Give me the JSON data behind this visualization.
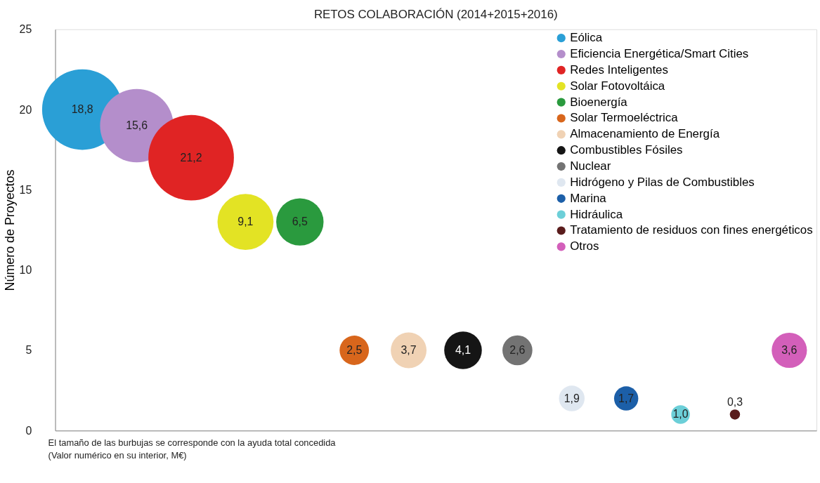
{
  "chart_data": {
    "type": "bubble",
    "title": "RETOS COLABORACIÓN (2014+2015+2016)",
    "ylabel": "Número de Proyectos",
    "categories": [
      null,
      null,
      null,
      null,
      null,
      null,
      null,
      null,
      null,
      null,
      null,
      null,
      null,
      null
    ],
    "ylim": [
      0,
      25
    ],
    "yticks": [
      0,
      5,
      10,
      15,
      20,
      25
    ],
    "grid": false,
    "legend": "top right",
    "marker": "circle",
    "tick_labels": "y",
    "series": [
      {
        "name": "Eólica",
        "color": "#2a9fd6",
        "values": [
          20,
          null,
          null,
          null,
          null,
          null,
          null,
          null,
          null,
          null,
          null,
          null,
          null,
          null
        ],
        "sizes": [
          18.8,
          null,
          null,
          null,
          null,
          null,
          null,
          null,
          null,
          null,
          null,
          null,
          null,
          null
        ],
        "value_labels": [
          "18,8",
          null,
          null,
          null,
          null,
          null,
          null,
          null,
          null,
          null,
          null,
          null,
          null,
          null
        ]
      },
      {
        "name": "Eficiencia Energética/Smart Cities",
        "color": "#b48ecb",
        "values": [
          null,
          19,
          null,
          null,
          null,
          null,
          null,
          null,
          null,
          null,
          null,
          null,
          null,
          null
        ],
        "sizes": [
          null,
          15.6,
          null,
          null,
          null,
          null,
          null,
          null,
          null,
          null,
          null,
          null,
          null,
          null
        ],
        "value_labels": [
          null,
          "15,6",
          null,
          null,
          null,
          null,
          null,
          null,
          null,
          null,
          null,
          null,
          null,
          null
        ]
      },
      {
        "name": "Redes Inteligentes",
        "color": "#e02424",
        "values": [
          null,
          null,
          17,
          null,
          null,
          null,
          null,
          null,
          null,
          null,
          null,
          null,
          null,
          null
        ],
        "sizes": [
          null,
          null,
          21.2,
          null,
          null,
          null,
          null,
          null,
          null,
          null,
          null,
          null,
          null,
          null
        ],
        "value_labels": [
          null,
          null,
          "21,2",
          null,
          null,
          null,
          null,
          null,
          null,
          null,
          null,
          null,
          null,
          null
        ]
      },
      {
        "name": "Solar Fotovoltáica",
        "color": "#e3e324",
        "values": [
          null,
          null,
          null,
          13,
          null,
          null,
          null,
          null,
          null,
          null,
          null,
          null,
          null,
          null
        ],
        "sizes": [
          null,
          null,
          null,
          9.1,
          null,
          null,
          null,
          null,
          null,
          null,
          null,
          null,
          null,
          null
        ],
        "value_labels": [
          null,
          null,
          null,
          "9,1",
          null,
          null,
          null,
          null,
          null,
          null,
          null,
          null,
          null,
          null
        ]
      },
      {
        "name": "Bioenergía",
        "color": "#2a9a3e",
        "values": [
          null,
          null,
          null,
          null,
          13,
          null,
          null,
          null,
          null,
          null,
          null,
          null,
          null,
          null
        ],
        "sizes": [
          null,
          null,
          null,
          null,
          6.5,
          null,
          null,
          null,
          null,
          null,
          null,
          null,
          null,
          null
        ],
        "value_labels": [
          null,
          null,
          null,
          null,
          "6,5",
          null,
          null,
          null,
          null,
          null,
          null,
          null,
          null,
          null
        ]
      },
      {
        "name": "Solar Termoeléctrica",
        "color": "#d8661c",
        "values": [
          null,
          null,
          null,
          null,
          null,
          5,
          null,
          null,
          null,
          null,
          null,
          null,
          null,
          null
        ],
        "sizes": [
          null,
          null,
          null,
          null,
          null,
          2.5,
          null,
          null,
          null,
          null,
          null,
          null,
          null,
          null
        ],
        "value_labels": [
          null,
          null,
          null,
          null,
          null,
          "2,5",
          null,
          null,
          null,
          null,
          null,
          null,
          null,
          null
        ]
      },
      {
        "name": "Almacenamiento de Energía",
        "color": "#f0d2b4",
        "values": [
          null,
          null,
          null,
          null,
          null,
          null,
          5,
          null,
          null,
          null,
          null,
          null,
          null,
          null
        ],
        "sizes": [
          null,
          null,
          null,
          null,
          null,
          null,
          3.7,
          null,
          null,
          null,
          null,
          null,
          null,
          null
        ],
        "value_labels": [
          null,
          null,
          null,
          null,
          null,
          null,
          "3,7",
          null,
          null,
          null,
          null,
          null,
          null,
          null
        ]
      },
      {
        "name": "Combustibles Fósiles",
        "color": "#151515",
        "values": [
          null,
          null,
          null,
          null,
          null,
          null,
          null,
          5,
          null,
          null,
          null,
          null,
          null,
          null
        ],
        "sizes": [
          null,
          null,
          null,
          null,
          null,
          null,
          null,
          4.1,
          null,
          null,
          null,
          null,
          null,
          null
        ],
        "value_labels": [
          null,
          null,
          null,
          null,
          null,
          null,
          null,
          "4,1",
          null,
          null,
          null,
          null,
          null,
          null
        ]
      },
      {
        "name": "Nuclear",
        "color": "#737373",
        "values": [
          null,
          null,
          null,
          null,
          null,
          null,
          null,
          null,
          5,
          null,
          null,
          null,
          null,
          null
        ],
        "sizes": [
          null,
          null,
          null,
          null,
          null,
          null,
          null,
          null,
          2.6,
          null,
          null,
          null,
          null,
          null
        ],
        "value_labels": [
          null,
          null,
          null,
          null,
          null,
          null,
          null,
          null,
          "2,6",
          null,
          null,
          null,
          null,
          null
        ]
      },
      {
        "name": "Hidrógeno y Pilas de Combustibles",
        "color": "#dfe7f0",
        "values": [
          null,
          null,
          null,
          null,
          null,
          null,
          null,
          null,
          null,
          2,
          null,
          null,
          null,
          null
        ],
        "sizes": [
          null,
          null,
          null,
          null,
          null,
          null,
          null,
          null,
          null,
          1.9,
          null,
          null,
          null,
          null
        ],
        "value_labels": [
          null,
          null,
          null,
          null,
          null,
          null,
          null,
          null,
          null,
          "1,9",
          null,
          null,
          null,
          null
        ]
      },
      {
        "name": "Marina",
        "color": "#1c5fa8",
        "values": [
          null,
          null,
          null,
          null,
          null,
          null,
          null,
          null,
          null,
          null,
          2,
          null,
          null,
          null
        ],
        "sizes": [
          null,
          null,
          null,
          null,
          null,
          null,
          null,
          null,
          null,
          null,
          1.7,
          null,
          null,
          null
        ],
        "value_labels": [
          null,
          null,
          null,
          null,
          null,
          null,
          null,
          null,
          null,
          null,
          "1,7",
          null,
          null,
          null
        ]
      },
      {
        "name": "Hidráulica",
        "color": "#6ccfd8",
        "values": [
          null,
          null,
          null,
          null,
          null,
          null,
          null,
          null,
          null,
          null,
          null,
          1,
          null,
          null
        ],
        "sizes": [
          null,
          null,
          null,
          null,
          null,
          null,
          null,
          null,
          null,
          null,
          null,
          1.0,
          null,
          null
        ],
        "value_labels": [
          null,
          null,
          null,
          null,
          null,
          null,
          null,
          null,
          null,
          null,
          null,
          "1,0",
          null,
          null
        ]
      },
      {
        "name": "Tratamiento de residuos con fines energéticos",
        "color": "#5a1c1c",
        "values": [
          null,
          null,
          null,
          null,
          null,
          null,
          null,
          null,
          null,
          null,
          null,
          null,
          1,
          null
        ],
        "sizes": [
          null,
          null,
          null,
          null,
          null,
          null,
          null,
          null,
          null,
          null,
          null,
          null,
          0.3,
          null
        ],
        "value_labels": [
          null,
          null,
          null,
          null,
          null,
          null,
          null,
          null,
          null,
          null,
          null,
          null,
          "0,3",
          null
        ]
      },
      {
        "name": "Otros",
        "color": "#d35fba",
        "values": [
          null,
          null,
          null,
          null,
          null,
          null,
          null,
          null,
          null,
          null,
          null,
          null,
          null,
          5
        ],
        "sizes": [
          null,
          null,
          null,
          null,
          null,
          null,
          null,
          null,
          null,
          null,
          null,
          null,
          null,
          3.6
        ],
        "value_labels": [
          null,
          null,
          null,
          null,
          null,
          null,
          null,
          null,
          null,
          null,
          null,
          null,
          null,
          "3,6"
        ]
      }
    ],
    "annotations": [
      "El tamaño de las burbujas se corresponde con la ayuda total concedida",
      "(Valor numérico en su interior, M€)"
    ]
  }
}
